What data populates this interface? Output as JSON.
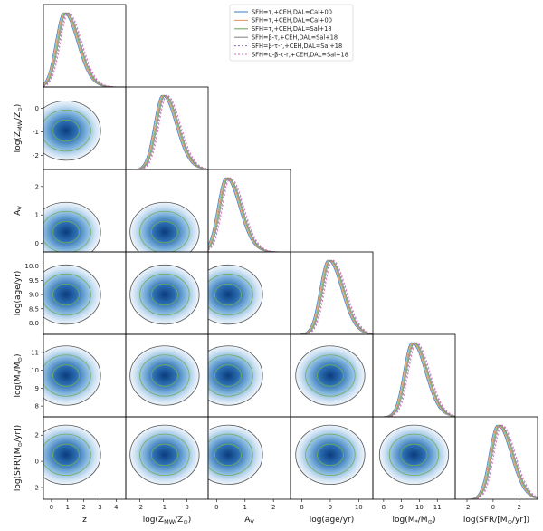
{
  "chart_data": {
    "type": "corner",
    "parameters": [
      {
        "key": "z",
        "label": "z",
        "range": [
          -0.5,
          4.6
        ],
        "ticks": [
          0,
          1,
          2,
          3,
          4
        ]
      },
      {
        "key": "logZ",
        "label": "log(Z_MW/Z⊙)",
        "range": [
          -2.6,
          0.9
        ],
        "ticks": [
          -2,
          -1,
          0
        ]
      },
      {
        "key": "Av",
        "label": "A_V",
        "range": [
          -0.3,
          2.6
        ],
        "ticks": [
          0,
          1,
          2
        ]
      },
      {
        "key": "logage",
        "label": "log(age/yr)",
        "range": [
          7.6,
          10.5
        ],
        "ticks": [
          8,
          9,
          10
        ],
        "ticks_y": [
          8.0,
          8.5,
          9.0,
          9.5,
          10.0
        ]
      },
      {
        "key": "logM",
        "label": "log(M*/M⊙)",
        "range": [
          7.4,
          12.0
        ],
        "ticks": [
          8,
          9,
          10,
          11
        ],
        "ticks_y": [
          8,
          9,
          10,
          11
        ]
      },
      {
        "key": "logSFR",
        "label": "log(SFR/[M⊙/yr])",
        "range": [
          -2.9,
          3.4
        ],
        "ticks": [
          -2,
          0,
          2
        ]
      }
    ],
    "axis_labels_display": [
      "z",
      "log(Z_MW/Z_⊙)",
      "A_V",
      "log(age/yr)",
      "log(M_*/M_⊙)",
      "log(SFR/[M_⊙/yr])"
    ],
    "marginal_modes": {
      "z": 0.9,
      "logZ": -0.95,
      "Av": 0.4,
      "logage": 9.0,
      "logM": 9.7,
      "logSFR": 0.5
    },
    "legend": {
      "placement": "top-right",
      "entries": [
        {
          "name": "SFH=τ,+CEH,DAL=Cal+00",
          "color": "#4a86c8",
          "style": "solid"
        },
        {
          "name": "SFH=τ,+CEH,DAL=Cal+00",
          "color": "#e89a6a",
          "style": "solid"
        },
        {
          "name": "SFH=τ,+CEH,DAL=Sal+18",
          "color": "#6fae5b",
          "style": "solid"
        },
        {
          "name": "SFH=β-τ,+CEH,DAL=Sal+18",
          "color": "#888888",
          "style": "solid"
        },
        {
          "name": "SFH=β-τ-r,+CEH,DAL=Sal+18",
          "color": "#9a7bc9",
          "style": "dashed"
        },
        {
          "name": "SFH=α-β-τ-r,+CEH,DAL=Sal+18",
          "color": "#e06aa8",
          "style": "dashed"
        }
      ]
    },
    "density_colormap": "Blues",
    "grid": false
  }
}
